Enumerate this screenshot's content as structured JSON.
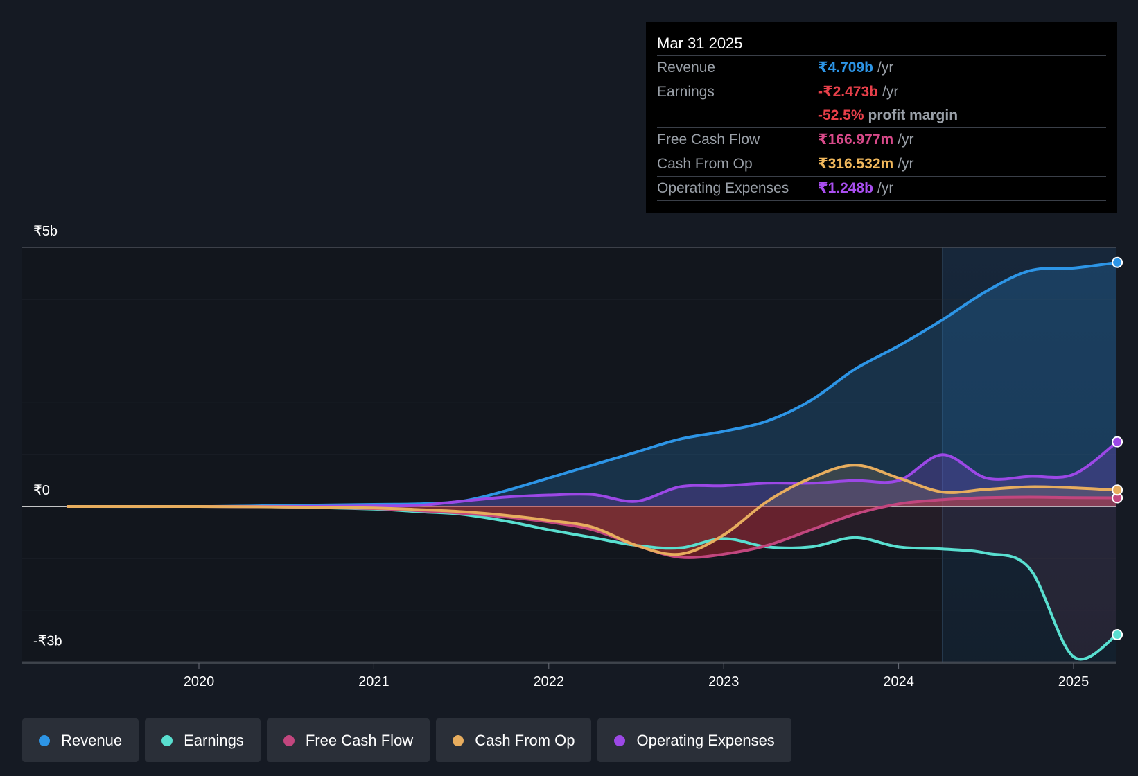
{
  "chart_data": {
    "type": "line",
    "title": "",
    "xlabel": "",
    "ylabel": "",
    "x_ticks": [
      "2020",
      "2021",
      "2022",
      "2023",
      "2024",
      "2025"
    ],
    "y_ticks": [
      {
        "value": 5,
        "label": "₹5b"
      },
      {
        "value": 0,
        "label": "₹0"
      },
      {
        "value": -3,
        "label": "-₹3b"
      }
    ],
    "ylim": [
      -3,
      5
    ],
    "xlim": [
      2019.0,
      2025.25
    ],
    "unit": "₹ billions",
    "highlight_start": 2024.25,
    "series": [
      {
        "name": "Revenue",
        "color": "#2d95e6",
        "fill": "rgba(45,149,230,0.22)",
        "points": [
          [
            2019.25,
            0
          ],
          [
            2020.0,
            0.0
          ],
          [
            2020.5,
            0.02
          ],
          [
            2021.0,
            0.04
          ],
          [
            2021.25,
            0.05
          ],
          [
            2021.5,
            0.1
          ],
          [
            2021.75,
            0.3
          ],
          [
            2022.0,
            0.55
          ],
          [
            2022.25,
            0.8
          ],
          [
            2022.5,
            1.05
          ],
          [
            2022.75,
            1.3
          ],
          [
            2023.0,
            1.45
          ],
          [
            2023.25,
            1.65
          ],
          [
            2023.5,
            2.05
          ],
          [
            2023.75,
            2.65
          ],
          [
            2024.0,
            3.1
          ],
          [
            2024.25,
            3.6
          ],
          [
            2024.5,
            4.15
          ],
          [
            2024.75,
            4.55
          ],
          [
            2025.0,
            4.6
          ],
          [
            2025.25,
            4.709
          ]
        ]
      },
      {
        "name": "Earnings",
        "color": "#59dfd0",
        "points": [
          [
            2019.25,
            0
          ],
          [
            2020.0,
            0.0
          ],
          [
            2020.5,
            -0.01
          ],
          [
            2021.0,
            -0.05
          ],
          [
            2021.25,
            -0.1
          ],
          [
            2021.5,
            -0.15
          ],
          [
            2021.75,
            -0.28
          ],
          [
            2022.0,
            -0.45
          ],
          [
            2022.25,
            -0.6
          ],
          [
            2022.5,
            -0.75
          ],
          [
            2022.75,
            -0.8
          ],
          [
            2023.0,
            -0.62
          ],
          [
            2023.25,
            -0.78
          ],
          [
            2023.5,
            -0.78
          ],
          [
            2023.75,
            -0.6
          ],
          [
            2024.0,
            -0.78
          ],
          [
            2024.25,
            -0.82
          ],
          [
            2024.5,
            -0.9
          ],
          [
            2024.75,
            -1.2
          ],
          [
            2025.0,
            -2.9
          ],
          [
            2025.25,
            -2.473
          ]
        ]
      },
      {
        "name": "Free Cash Flow",
        "color": "#c2467e",
        "fill": "rgba(210,40,50,0.42)",
        "points": [
          [
            2019.25,
            0
          ],
          [
            2020.0,
            0.0
          ],
          [
            2020.5,
            -0.01
          ],
          [
            2021.0,
            -0.04
          ],
          [
            2021.25,
            -0.08
          ],
          [
            2021.5,
            -0.13
          ],
          [
            2021.75,
            -0.2
          ],
          [
            2022.0,
            -0.3
          ],
          [
            2022.25,
            -0.45
          ],
          [
            2022.5,
            -0.75
          ],
          [
            2022.75,
            -0.98
          ],
          [
            2023.0,
            -0.92
          ],
          [
            2023.25,
            -0.75
          ],
          [
            2023.5,
            -0.45
          ],
          [
            2023.75,
            -0.15
          ],
          [
            2024.0,
            0.05
          ],
          [
            2024.25,
            0.13
          ],
          [
            2024.5,
            0.17
          ],
          [
            2024.75,
            0.18
          ],
          [
            2025.0,
            0.17
          ],
          [
            2025.25,
            0.167
          ]
        ]
      },
      {
        "name": "Cash From Op",
        "color": "#e7ad5e",
        "fill": "rgba(231,173,94,0.16)",
        "points": [
          [
            2019.25,
            0
          ],
          [
            2020.0,
            0.0
          ],
          [
            2020.5,
            -0.01
          ],
          [
            2021.0,
            -0.03
          ],
          [
            2021.25,
            -0.06
          ],
          [
            2021.5,
            -0.1
          ],
          [
            2021.75,
            -0.17
          ],
          [
            2022.0,
            -0.27
          ],
          [
            2022.25,
            -0.4
          ],
          [
            2022.5,
            -0.75
          ],
          [
            2022.75,
            -0.92
          ],
          [
            2023.0,
            -0.55
          ],
          [
            2023.25,
            0.1
          ],
          [
            2023.5,
            0.55
          ],
          [
            2023.75,
            0.8
          ],
          [
            2024.0,
            0.55
          ],
          [
            2024.25,
            0.28
          ],
          [
            2024.5,
            0.33
          ],
          [
            2024.75,
            0.38
          ],
          [
            2025.0,
            0.36
          ],
          [
            2025.25,
            0.317
          ]
        ]
      },
      {
        "name": "Operating Expenses",
        "color": "#9c48e6",
        "fill": "rgba(156,72,230,0.22)",
        "points": [
          [
            2019.25,
            0
          ],
          [
            2020.0,
            0.0
          ],
          [
            2020.5,
            0.0
          ],
          [
            2021.0,
            0.01
          ],
          [
            2021.25,
            0.02
          ],
          [
            2021.5,
            0.1
          ],
          [
            2021.75,
            0.18
          ],
          [
            2022.0,
            0.22
          ],
          [
            2022.25,
            0.23
          ],
          [
            2022.5,
            0.1
          ],
          [
            2022.75,
            0.38
          ],
          [
            2023.0,
            0.4
          ],
          [
            2023.25,
            0.45
          ],
          [
            2023.5,
            0.45
          ],
          [
            2023.75,
            0.5
          ],
          [
            2024.0,
            0.5
          ],
          [
            2024.25,
            1.0
          ],
          [
            2024.5,
            0.55
          ],
          [
            2024.75,
            0.58
          ],
          [
            2025.0,
            0.62
          ],
          [
            2025.25,
            1.248
          ]
        ]
      }
    ]
  },
  "tooltip": {
    "date": "Mar 31 2025",
    "rows": [
      {
        "label": "Revenue",
        "value": "₹4.709b",
        "unit": "/yr",
        "color": "#2d95e6"
      },
      {
        "label": "Earnings",
        "value": "-₹2.473b",
        "unit": "/yr",
        "color": "#e8404a"
      },
      {
        "label": "",
        "value": "-52.5%",
        "unit": "profit margin",
        "color": "#e8404a"
      },
      {
        "label": "Free Cash Flow",
        "value": "₹166.977m",
        "unit": "/yr",
        "color": "#d94a8a"
      },
      {
        "label": "Cash From Op",
        "value": "₹316.532m",
        "unit": "/yr",
        "color": "#f1b85c"
      },
      {
        "label": "Operating Expenses",
        "value": "₹1.248b",
        "unit": "/yr",
        "color": "#a94ef0"
      }
    ]
  },
  "legend": [
    {
      "label": "Revenue",
      "color": "#2d95e6"
    },
    {
      "label": "Earnings",
      "color": "#59dfd0"
    },
    {
      "label": "Free Cash Flow",
      "color": "#c2467e"
    },
    {
      "label": "Cash From Op",
      "color": "#e7ad5e"
    },
    {
      "label": "Operating Expenses",
      "color": "#9c48e6"
    }
  ]
}
